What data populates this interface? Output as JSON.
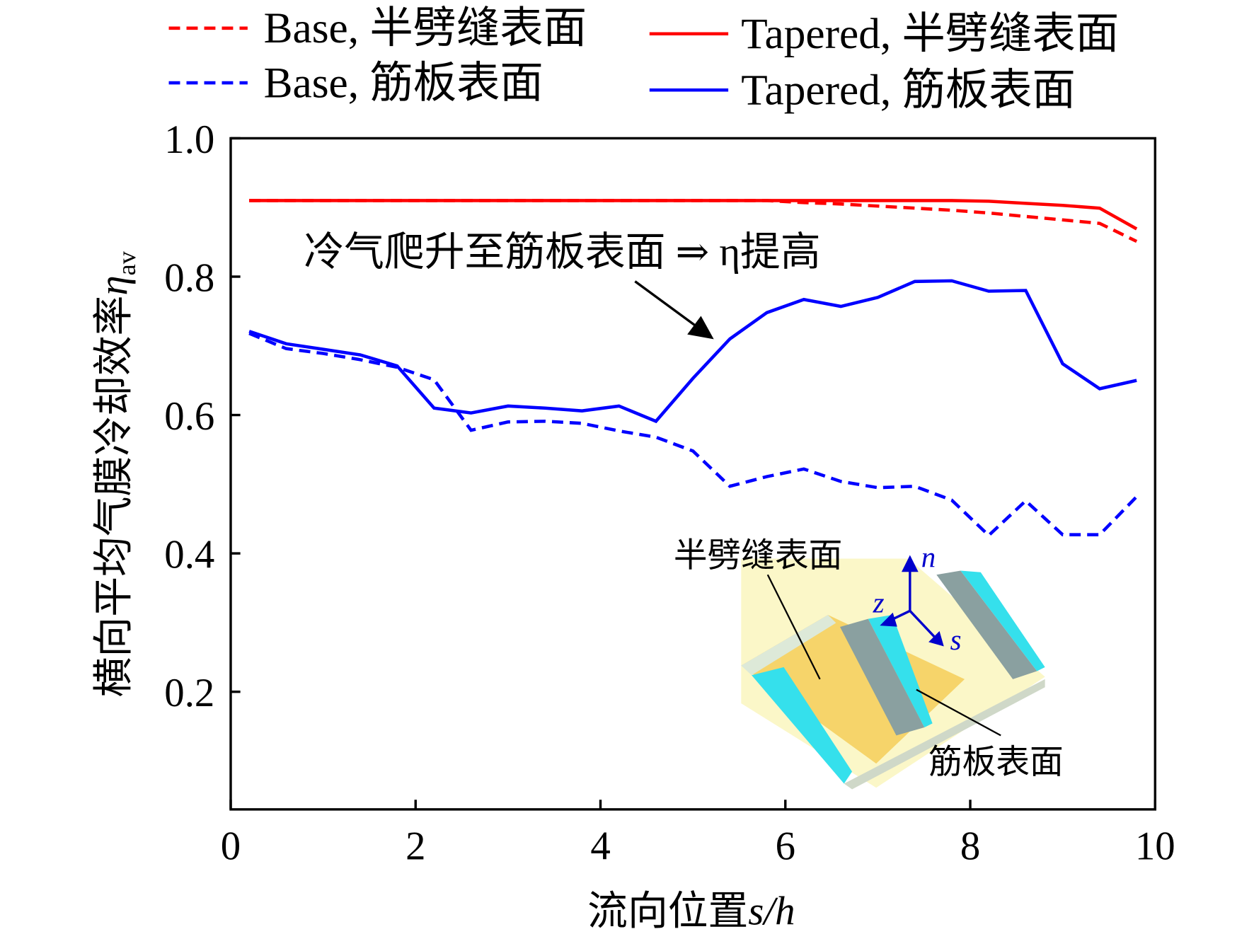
{
  "chart_data": {
    "type": "line",
    "x_label": "流向位置",
    "x_label_symbol": "s/h",
    "y_label": "横向平均气膜冷却效率",
    "y_label_symbol": "η",
    "y_label_subscript": "av",
    "x": [
      0.2,
      0.6,
      1.0,
      1.4,
      1.8,
      2.2,
      2.6,
      3.0,
      3.4,
      3.8,
      4.2,
      4.6,
      5.0,
      5.4,
      5.8,
      6.2,
      6.6,
      7.0,
      7.4,
      7.8,
      8.2,
      8.6,
      9.0,
      9.4,
      9.8
    ],
    "series": [
      {
        "name": "Base, 半劈缝表面",
        "color": "#ff0000",
        "dashed": true,
        "values": [
          0.91,
          0.91,
          0.91,
          0.91,
          0.91,
          0.91,
          0.91,
          0.91,
          0.91,
          0.91,
          0.91,
          0.91,
          0.91,
          0.91,
          0.91,
          0.907,
          0.905,
          0.902,
          0.899,
          0.896,
          0.892,
          0.887,
          0.882,
          0.877,
          0.851
        ]
      },
      {
        "name": "Tapered, 半劈缝表面",
        "color": "#ff0000",
        "dashed": false,
        "values": [
          0.91,
          0.91,
          0.91,
          0.91,
          0.91,
          0.91,
          0.91,
          0.91,
          0.91,
          0.91,
          0.91,
          0.91,
          0.91,
          0.91,
          0.91,
          0.91,
          0.91,
          0.91,
          0.91,
          0.91,
          0.909,
          0.906,
          0.903,
          0.899,
          0.869
        ]
      },
      {
        "name": "Base, 筋板表面",
        "color": "#0000ff",
        "dashed": true,
        "values": [
          0.718,
          0.696,
          0.689,
          0.68,
          0.669,
          0.651,
          0.578,
          0.59,
          0.591,
          0.588,
          0.577,
          0.568,
          0.548,
          0.497,
          0.511,
          0.522,
          0.504,
          0.495,
          0.497,
          0.477,
          0.426,
          0.476,
          0.427,
          0.427,
          0.482
        ]
      },
      {
        "name": "Tapered, 筋板表面",
        "color": "#0000ff",
        "dashed": false,
        "values": [
          0.721,
          0.703,
          0.695,
          0.687,
          0.671,
          0.61,
          0.603,
          0.613,
          0.61,
          0.606,
          0.613,
          0.591,
          0.653,
          0.71,
          0.748,
          0.767,
          0.757,
          0.77,
          0.793,
          0.794,
          0.779,
          0.78,
          0.674,
          0.638,
          0.65
        ]
      }
    ],
    "xlim": [
      0,
      10
    ],
    "xticks": [
      0,
      2,
      4,
      6,
      8,
      10
    ],
    "ylim": [
      0.03,
      1.0
    ],
    "yticks": [
      0.2,
      0.4,
      {
        "value": 0.6,
        "label": "0.6"
      },
      {
        "value": 0.8,
        "label": "0.8"
      },
      {
        "value": 1.0,
        "label": "1.0"
      }
    ],
    "annotation": "冷气爬升至筋板表面 ⇒ η提高",
    "inset": {
      "slot_label": "半劈缝表面",
      "rib_label": "筋板表面",
      "axis_n": "n",
      "axis_z": "z",
      "axis_s": "s"
    }
  }
}
